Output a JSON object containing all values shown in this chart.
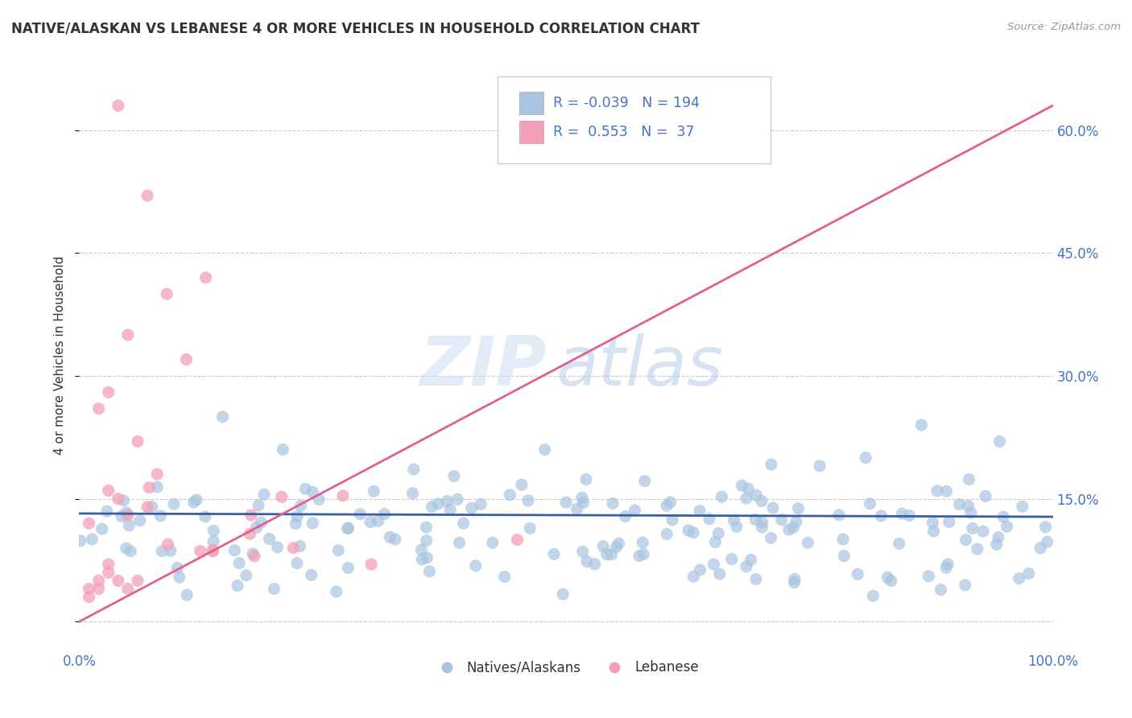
{
  "title": "NATIVE/ALASKAN VS LEBANESE 4 OR MORE VEHICLES IN HOUSEHOLD CORRELATION CHART",
  "source": "Source: ZipAtlas.com",
  "ylabel": "4 or more Vehicles in Household",
  "xlim": [
    0,
    100
  ],
  "ylim": [
    -3,
    68
  ],
  "yticks": [
    0,
    15,
    30,
    45,
    60
  ],
  "yticklabels": [
    "",
    "15.0%",
    "30.0%",
    "45.0%",
    "60.0%"
  ],
  "blue_R": -0.039,
  "blue_N": 194,
  "pink_R": 0.553,
  "pink_N": 37,
  "blue_color": "#a8c4e0",
  "pink_color": "#f4a0b8",
  "blue_line_color": "#3a5fa0",
  "pink_line_color": "#e06090",
  "watermark_zip": "ZIP",
  "watermark_atlas": "atlas",
  "background_color": "#ffffff",
  "grid_color": "#cccccc",
  "blue_trend_x0": 0,
  "blue_trend_y0": 13.2,
  "blue_trend_x1": 100,
  "blue_trend_y1": 12.8,
  "pink_trend_x0": 0,
  "pink_trend_y0": 0,
  "pink_trend_x1": 100,
  "pink_trend_y1": 63
}
